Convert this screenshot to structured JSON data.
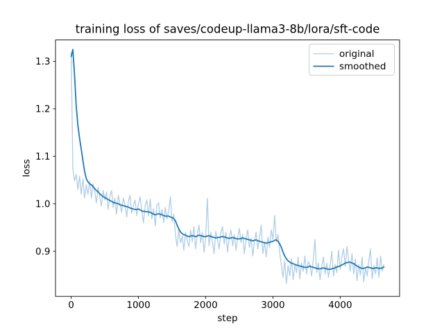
{
  "figure": {
    "background": "#ffffff"
  },
  "chart_data": {
    "type": "line",
    "title": "training loss of saves/codeup-llama3-8b/lora/sft-code",
    "xlabel": "step",
    "ylabel": "loss",
    "xlim": [
      -233,
      4883
    ],
    "ylim": [
      0.805,
      1.345
    ],
    "xticks": [
      0,
      1000,
      2000,
      3000,
      4000
    ],
    "xtick_labels": [
      "0",
      "1000",
      "2000",
      "3000",
      "4000"
    ],
    "yticks": [
      0.9,
      1.0,
      1.1,
      1.2,
      1.3
    ],
    "ytick_labels": [
      "0.9",
      "1.0",
      "1.1",
      "1.2",
      "1.3"
    ],
    "grid": false,
    "axis_color": "#000000",
    "legend": {
      "position": "upper right",
      "entries": [
        "original",
        "smoothed"
      ]
    },
    "x_sampling": {
      "start": 0,
      "interval": 25,
      "end": 4650
    },
    "series": [
      {
        "name": "original",
        "color": "#aecde5",
        "line_width": 1.3,
        "x_start": 0,
        "x_interval": 25,
        "values": [
          1.318,
          1.075,
          1.048,
          1.062,
          1.03,
          1.058,
          1.02,
          1.052,
          1.012,
          1.04,
          1.02,
          1.048,
          1.012,
          1.042,
          1.025,
          1.002,
          1.035,
          1.015,
          0.995,
          1.028,
          1.008,
          1.025,
          0.988,
          1.015,
          1.028,
          0.992,
          1.012,
          0.978,
          1.018,
          1.0,
          0.982,
          1.012,
          0.998,
          0.972,
          1.005,
          1.018,
          0.98,
          0.996,
          1.008,
          0.975,
          1.0,
          1.015,
          0.985,
          0.96,
          0.996,
          1.008,
          0.974,
          1.01,
          0.968,
          0.99,
          0.953,
          0.998,
          1.002,
          0.97,
          0.988,
          0.96,
          0.992,
          0.968,
          0.985,
          1.015,
          0.962,
          0.978,
          0.935,
          0.91,
          0.945,
          0.918,
          0.932,
          0.902,
          0.94,
          0.922,
          0.91,
          0.945,
          0.92,
          0.952,
          0.905,
          0.935,
          0.955,
          0.918,
          0.94,
          0.898,
          0.93,
          1.012,
          0.912,
          0.94,
          0.92,
          0.895,
          0.942,
          0.925,
          0.905,
          0.938,
          0.952,
          0.915,
          0.94,
          0.898,
          0.928,
          0.945,
          0.912,
          0.935,
          0.902,
          0.928,
          0.948,
          0.918,
          0.935,
          0.895,
          0.925,
          0.945,
          0.908,
          0.928,
          0.89,
          0.922,
          0.94,
          0.905,
          0.93,
          0.955,
          0.895,
          0.92,
          0.888,
          0.93,
          0.908,
          0.945,
          0.925,
          0.975,
          0.92,
          0.935,
          0.898,
          0.87,
          0.845,
          0.88,
          0.832,
          0.87,
          0.848,
          0.885,
          0.84,
          0.872,
          0.855,
          0.888,
          0.842,
          0.875,
          0.858,
          0.89,
          0.852,
          0.878,
          0.872,
          0.848,
          0.882,
          0.925,
          0.855,
          0.875,
          0.84,
          0.868,
          0.888,
          0.852,
          0.875,
          0.845,
          0.87,
          0.9,
          0.848,
          0.872,
          0.855,
          0.902,
          0.862,
          0.888,
          0.905,
          0.868,
          0.91,
          0.882,
          0.858,
          0.895,
          0.852,
          0.884,
          0.838,
          0.872,
          0.85,
          0.888,
          0.835,
          0.865,
          0.848,
          0.88,
          0.905,
          0.842,
          0.87,
          0.852,
          0.886,
          0.845,
          0.89,
          0.858,
          0.872
        ]
      },
      {
        "name": "smoothed",
        "color": "#1f77b4",
        "line_width": 1.8,
        "x_start": 0,
        "x_interval": 25,
        "values": [
          1.31,
          1.325,
          1.272,
          1.205,
          1.165,
          1.138,
          1.115,
          1.09,
          1.068,
          1.053,
          1.046,
          1.042,
          1.04,
          1.036,
          1.032,
          1.028,
          1.025,
          1.021,
          1.018,
          1.015,
          1.013,
          1.011,
          1.009,
          1.007,
          1.005,
          1.003,
          1.002,
          1.001,
          1.0,
          0.998,
          0.997,
          0.996,
          0.995,
          0.994,
          0.993,
          0.991,
          0.99,
          0.989,
          0.988,
          0.988,
          0.989,
          0.987,
          0.985,
          0.984,
          0.984,
          0.983,
          0.983,
          0.982,
          0.98,
          0.978,
          0.977,
          0.978,
          0.979,
          0.978,
          0.977,
          0.975,
          0.974,
          0.974,
          0.974,
          0.972,
          0.971,
          0.969,
          0.964,
          0.955,
          0.947,
          0.941,
          0.937,
          0.935,
          0.934,
          0.932,
          0.931,
          0.932,
          0.933,
          0.932,
          0.931,
          0.932,
          0.934,
          0.933,
          0.932,
          0.931,
          0.931,
          0.932,
          0.933,
          0.931,
          0.93,
          0.929,
          0.928,
          0.929,
          0.929,
          0.93,
          0.931,
          0.93,
          0.929,
          0.928,
          0.927,
          0.928,
          0.929,
          0.928,
          0.927,
          0.926,
          0.926,
          0.927,
          0.928,
          0.927,
          0.926,
          0.925,
          0.924,
          0.923,
          0.922,
          0.923,
          0.924,
          0.922,
          0.921,
          0.92,
          0.919,
          0.918,
          0.917,
          0.918,
          0.919,
          0.92,
          0.921,
          0.923,
          0.924,
          0.921,
          0.916,
          0.908,
          0.898,
          0.89,
          0.884,
          0.88,
          0.877,
          0.875,
          0.874,
          0.872,
          0.871,
          0.87,
          0.869,
          0.868,
          0.867,
          0.866,
          0.866,
          0.867,
          0.869,
          0.867,
          0.866,
          0.865,
          0.864,
          0.863,
          0.863,
          0.864,
          0.865,
          0.864,
          0.863,
          0.862,
          0.862,
          0.863,
          0.864,
          0.865,
          0.867,
          0.868,
          0.869,
          0.871,
          0.873,
          0.875,
          0.876,
          0.877,
          0.877,
          0.875,
          0.874,
          0.871,
          0.869,
          0.867,
          0.865,
          0.864,
          0.864,
          0.865,
          0.867,
          0.866,
          0.865,
          0.864,
          0.864,
          0.865,
          0.865,
          0.864,
          0.864,
          0.865,
          0.867
        ]
      }
    ]
  }
}
